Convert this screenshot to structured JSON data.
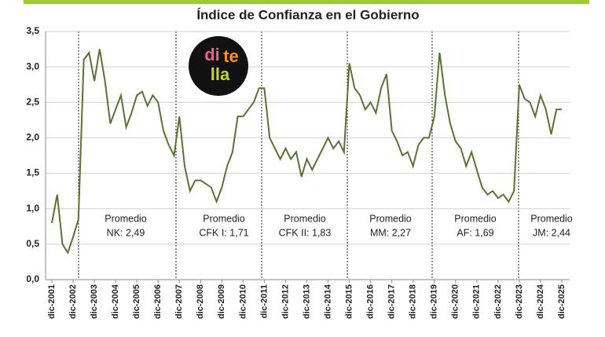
{
  "chart_data": {
    "type": "line",
    "title": "Índice de Confianza en el Gobierno",
    "categories": [
      "dic-2001",
      null,
      null,
      null,
      "dic-2002",
      null,
      null,
      null,
      "dic-2003",
      null,
      null,
      null,
      "dic-2004",
      null,
      null,
      null,
      "dic-2005",
      null,
      null,
      null,
      "dic-2006",
      null,
      null,
      null,
      "dic-2007",
      null,
      null,
      null,
      "dic-2008",
      null,
      null,
      null,
      "dic-2009",
      null,
      null,
      null,
      "dic-2010",
      null,
      null,
      null,
      "dic-2011",
      null,
      null,
      null,
      "dic-2012",
      null,
      null,
      null,
      "dic-2013",
      null,
      null,
      null,
      "dic-2014",
      null,
      null,
      null,
      "dic-2015",
      null,
      null,
      null,
      "dic-2016",
      null,
      null,
      null,
      "dic-2017",
      null,
      null,
      null,
      "dic-2018",
      null,
      null,
      null,
      "dic-2019",
      null,
      null,
      null,
      "dic-2020",
      null,
      null,
      null,
      "dic-2021",
      null,
      null,
      null,
      "dic-2022",
      null,
      null,
      null,
      "dic-2023",
      null,
      null,
      null,
      "dic-2024",
      null,
      null,
      null,
      "dic-2025"
    ],
    "series": [
      {
        "name": "Índice de Confianza en el Gobierno",
        "color": "#5a7233",
        "values": [
          0.8,
          1.2,
          0.5,
          0.38,
          0.6,
          0.85,
          3.1,
          3.2,
          2.8,
          3.25,
          2.8,
          2.2,
          2.4,
          2.6,
          2.15,
          2.35,
          2.6,
          2.65,
          2.45,
          2.6,
          2.5,
          2.1,
          1.9,
          1.75,
          2.3,
          1.6,
          1.25,
          1.4,
          1.4,
          1.35,
          1.3,
          1.1,
          1.3,
          1.6,
          1.8,
          2.3,
          2.3,
          2.4,
          2.5,
          2.7,
          2.7,
          2.0,
          1.85,
          1.7,
          1.85,
          1.7,
          1.8,
          1.45,
          1.7,
          1.55,
          1.7,
          1.85,
          2.0,
          1.85,
          1.95,
          1.8,
          3.05,
          2.7,
          2.6,
          2.4,
          2.5,
          2.35,
          2.7,
          2.9,
          2.1,
          1.95,
          1.75,
          1.8,
          1.6,
          1.9,
          2.0,
          2.0,
          2.3,
          3.2,
          2.6,
          2.2,
          1.95,
          1.85,
          1.6,
          1.8,
          1.55,
          1.3,
          1.2,
          1.25,
          1.15,
          1.2,
          1.1,
          1.25,
          2.75,
          2.55,
          2.5,
          2.3,
          2.6,
          2.4,
          2.05,
          2.4,
          2.4
        ]
      }
    ],
    "ylim": [
      0,
      3.5
    ],
    "yticks": [
      {
        "value": 0,
        "label": "0,0"
      },
      {
        "value": 0.5,
        "label": "0,5"
      },
      {
        "value": 1,
        "label": "1,0"
      },
      {
        "value": 1.5,
        "label": "1,5"
      },
      {
        "value": 2,
        "label": "2,0"
      },
      {
        "value": 2.5,
        "label": "2,5"
      },
      {
        "value": 3,
        "label": "3,0"
      },
      {
        "value": 3.5,
        "label": "3,5"
      }
    ],
    "grid": true,
    "annotations": [
      [
        "Promedio",
        "NK: 2,49"
      ],
      [
        "Promedio",
        "CFK I: 1,71"
      ],
      [
        "Promedio",
        "CFK II: 1,83"
      ],
      [
        "Promedio",
        "MM: 2,27"
      ],
      [
        "Promedio",
        "AF: 1,69"
      ],
      [
        "Promedio",
        "JM: 2,44"
      ]
    ],
    "logo": [
      "di",
      "te",
      "lla"
    ]
  }
}
